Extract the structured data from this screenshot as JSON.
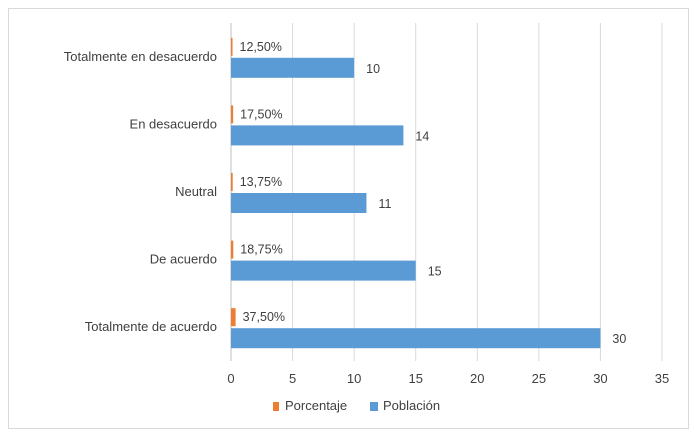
{
  "chart_data": {
    "type": "bar",
    "orientation": "horizontal",
    "categories": [
      "Totalmente en desacuerdo",
      "En desacuerdo",
      "Neutral",
      "De acuerdo",
      "Totalmente de acuerdo"
    ],
    "series": [
      {
        "name": "Porcentaje",
        "values": [
          0.125,
          0.175,
          0.1375,
          0.1875,
          0.375
        ],
        "labels": [
          "12,50%",
          "17,50%",
          "13,75%",
          "18,75%",
          "37,50%"
        ],
        "color": "#ed7d31"
      },
      {
        "name": "Población",
        "values": [
          10,
          14,
          11,
          15,
          30
        ],
        "labels": [
          "10",
          "14",
          "11",
          "15",
          "30"
        ],
        "color": "#5b9bd5"
      }
    ],
    "xlim": [
      0,
      35
    ],
    "xticks": [
      "0",
      "5",
      "10",
      "15",
      "20",
      "25",
      "30",
      "35"
    ],
    "grid": "vertical",
    "legend_position": "bottom",
    "title": "",
    "xlabel": "",
    "ylabel": ""
  }
}
